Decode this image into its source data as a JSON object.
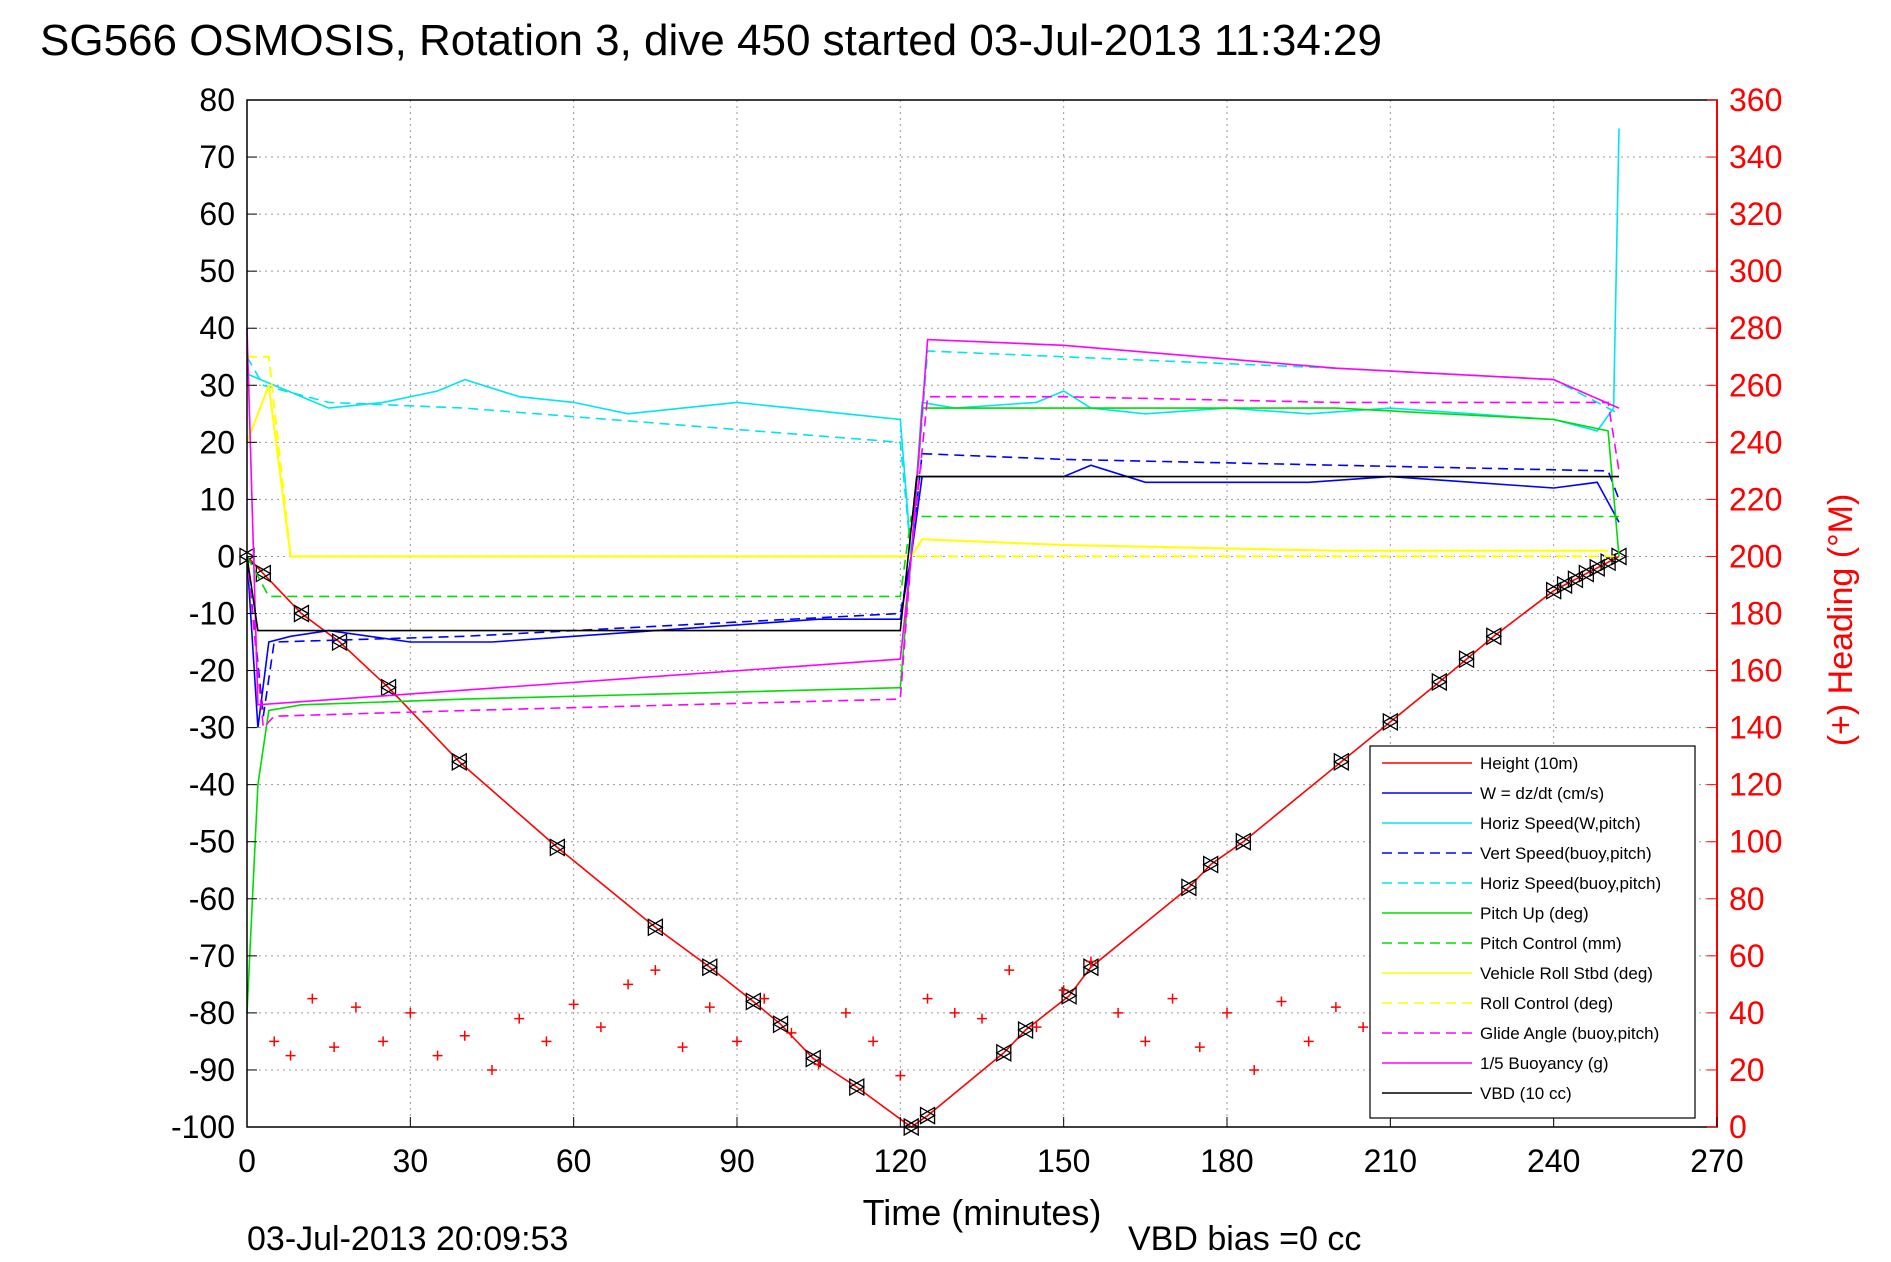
{
  "title": "SG566 OSMOSIS, Rotation 3, dive 450 started 03-Jul-2013 11:34:29",
  "footer": {
    "timestamp": "03-Jul-2013 20:09:53",
    "vbd_bias": "VBD bias =0 cc"
  },
  "chart_data": {
    "type": "line",
    "title": "SG566 OSMOSIS, Rotation 3, dive 450 started 03-Jul-2013 11:34:29",
    "xlabel": "Time (minutes)",
    "ylabel": "",
    "ylabel_right": "(+) Heading (°M)",
    "xlim": [
      0,
      270
    ],
    "ylim": [
      -100,
      80
    ],
    "ylim_right": [
      0,
      360
    ],
    "grid": true,
    "legend_position": "bottom-right",
    "x_ticks": [
      0,
      30,
      60,
      90,
      120,
      150,
      180,
      210,
      240,
      270
    ],
    "y_ticks": [
      80,
      70,
      60,
      50,
      40,
      30,
      20,
      10,
      0,
      -10,
      -20,
      -30,
      -40,
      -50,
      -60,
      -70,
      -80,
      -90,
      -100
    ],
    "y_ticks_right": [
      360,
      340,
      320,
      300,
      280,
      260,
      240,
      220,
      200,
      180,
      160,
      140,
      120,
      100,
      80,
      60,
      40,
      20,
      0
    ],
    "series": [
      {
        "name": "Height (10m)",
        "color": "#ff0000",
        "style": "solid",
        "marker": "triangle",
        "x": [
          0,
          3,
          10,
          17,
          26,
          39,
          57,
          75,
          85,
          93,
          98,
          104,
          112,
          122,
          125,
          139,
          143,
          151,
          155,
          173,
          177,
          183,
          201,
          210,
          219,
          224,
          229,
          240,
          242,
          244,
          246,
          248,
          250,
          252
        ],
        "y": [
          0,
          -3,
          -10,
          -15,
          -23,
          -36,
          -51,
          -65,
          -72,
          -78,
          -82,
          -88,
          -93,
          -100,
          -98,
          -87,
          -83,
          -77,
          -72,
          -58,
          -54,
          -50,
          -36,
          -29,
          -22,
          -18,
          -14,
          -6,
          -5,
          -4,
          -3,
          -2,
          -1,
          0
        ]
      },
      {
        "name": "W = dz/dt (cm/s)",
        "color": "#0000ff",
        "style": "solid",
        "x": [
          0,
          2,
          4,
          8,
          15,
          30,
          45,
          60,
          75,
          90,
          105,
          120,
          122,
          124,
          130,
          140,
          150,
          155,
          165,
          180,
          195,
          210,
          225,
          240,
          248,
          252
        ],
        "y": [
          0,
          -30,
          -15,
          -14,
          -13,
          -15,
          -15,
          -14,
          -13,
          -12,
          -11,
          -11,
          0,
          14,
          14,
          14,
          14,
          16,
          13,
          13,
          13,
          14,
          13,
          12,
          13,
          6
        ]
      },
      {
        "name": "Horiz Speed(W,pitch)",
        "color": "#00e5ee",
        "style": "solid",
        "x": [
          0,
          5,
          15,
          25,
          35,
          40,
          50,
          60,
          70,
          80,
          90,
          100,
          110,
          120,
          122,
          124,
          130,
          145,
          150,
          155,
          165,
          180,
          195,
          210,
          225,
          240,
          248,
          251,
          252
        ],
        "y": [
          32,
          30,
          26,
          27,
          29,
          31,
          28,
          27,
          25,
          26,
          27,
          26,
          25,
          24,
          0,
          27,
          26,
          27,
          29,
          26,
          25,
          26,
          25,
          26,
          25,
          24,
          22,
          26,
          75
        ]
      },
      {
        "name": "Vert Speed(buoy,pitch)",
        "color": "#0000ff",
        "style": "dashed",
        "x": [
          0,
          3,
          5,
          40,
          80,
          120,
          122,
          124,
          150,
          200,
          250,
          252
        ],
        "y": [
          0,
          -28,
          -15,
          -14,
          -12,
          -10,
          0,
          18,
          17,
          16,
          15,
          10
        ]
      },
      {
        "name": "Horiz Speed(buoy,pitch)",
        "color": "#00e5ee",
        "style": "dashed",
        "x": [
          0,
          3,
          15,
          40,
          80,
          120,
          122,
          125,
          150,
          200,
          240,
          252
        ],
        "y": [
          35,
          30,
          27,
          26,
          23,
          20,
          0,
          36,
          35,
          33,
          31,
          25
        ]
      },
      {
        "name": "Pitch Up (deg)",
        "color": "#00dd00",
        "style": "solid",
        "x": [
          0,
          2,
          4,
          10,
          40,
          80,
          120,
          122,
          124,
          150,
          200,
          240,
          250,
          252
        ],
        "y": [
          -80,
          -40,
          -27,
          -26,
          -25,
          -24,
          -23,
          0,
          26,
          26,
          26,
          24,
          22,
          0
        ]
      },
      {
        "name": "Pitch Control (mm)",
        "color": "#00dd00",
        "style": "dashed",
        "x": [
          0,
          4,
          120,
          122,
          252
        ],
        "y": [
          0,
          -7,
          -7,
          7,
          7
        ]
      },
      {
        "name": "Vehicle Roll Stbd (deg)",
        "color": "#ffff00",
        "style": "solid",
        "x": [
          0,
          4,
          8,
          60,
          120,
          122,
          124,
          150,
          200,
          250
        ],
        "y": [
          20,
          30,
          0,
          0,
          0,
          0,
          3,
          2,
          1,
          1
        ]
      },
      {
        "name": "Roll Control (deg)",
        "color": "#ffff00",
        "style": "dashed",
        "x": [
          0,
          4,
          8,
          120,
          124,
          252
        ],
        "y": [
          35,
          35,
          0,
          0,
          0,
          0
        ]
      },
      {
        "name": "Glide Angle (buoy,pitch)",
        "color": "#ff00ff",
        "style": "dashed",
        "x": [
          0,
          3,
          5,
          40,
          80,
          120,
          122,
          125,
          150,
          200,
          250,
          252
        ],
        "y": [
          0,
          -30,
          -28,
          -27,
          -26,
          -25,
          0,
          28,
          28,
          27,
          27,
          15
        ]
      },
      {
        "name": "1/5 Buoyancy (g)",
        "color": "#ff00ff",
        "style": "solid",
        "x": [
          0,
          2,
          120,
          122,
          125,
          150,
          200,
          240,
          252
        ],
        "y": [
          40,
          -26,
          -18,
          0,
          38,
          37,
          33,
          31,
          26
        ]
      },
      {
        "name": "VBD (10 cc)",
        "color": "#000000",
        "style": "solid",
        "x": [
          0,
          2,
          120,
          123,
          252
        ],
        "y": [
          0,
          -13,
          -13,
          14,
          14
        ]
      },
      {
        "name": "Heading",
        "axis": "right",
        "color": "#ff0000",
        "marker": "plus",
        "x": [
          5,
          8,
          12,
          16,
          20,
          25,
          30,
          35,
          40,
          45,
          50,
          55,
          60,
          65,
          70,
          75,
          80,
          85,
          90,
          95,
          100,
          105,
          110,
          115,
          120,
          125,
          130,
          135,
          140,
          145,
          150,
          155,
          160,
          165,
          170,
          175,
          180,
          185,
          190,
          195,
          200,
          205,
          210,
          215,
          220
        ],
        "y": [
          30,
          25,
          45,
          28,
          42,
          30,
          40,
          25,
          32,
          20,
          38,
          30,
          43,
          35,
          50,
          55,
          28,
          42,
          30,
          45,
          33,
          22,
          40,
          30,
          18,
          45,
          40,
          38,
          55,
          35,
          48,
          58,
          40,
          30,
          45,
          28,
          40,
          20,
          44,
          30,
          42,
          35,
          28,
          40,
          30
        ]
      }
    ]
  }
}
